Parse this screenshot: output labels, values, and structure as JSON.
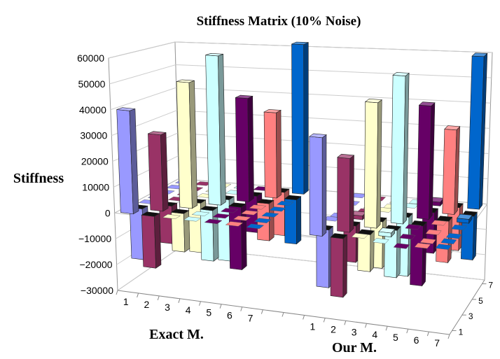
{
  "chart_data": {
    "type": "bar3d",
    "title": "Stiffness Matrix (10% Noise)",
    "zlabel": "Stiffness",
    "groups": [
      {
        "name": "Exact M.",
        "matrix": [
          [
            40000,
            -20000,
            0,
            0,
            0,
            0,
            0
          ],
          [
            -20000,
            30000,
            -15000,
            0,
            0,
            0,
            0
          ],
          [
            0,
            -15000,
            50000,
            -20000,
            0,
            0,
            0
          ],
          [
            0,
            0,
            -20000,
            60000,
            -25000,
            0,
            0
          ],
          [
            0,
            0,
            0,
            -25000,
            42000,
            -15000,
            0
          ],
          [
            0,
            0,
            0,
            0,
            -15000,
            35000,
            -18000
          ],
          [
            0,
            0,
            0,
            0,
            0,
            -18000,
            62000
          ]
        ]
      },
      {
        "name": "Our M.",
        "matrix": [
          [
            37000,
            -22000,
            1000,
            0,
            -1000,
            0,
            500
          ],
          [
            -22000,
            28000,
            -14000,
            1500,
            0,
            -800,
            0
          ],
          [
            1000,
            -14000,
            48000,
            -18000,
            1200,
            0,
            -600
          ],
          [
            0,
            1500,
            -18000,
            57000,
            -23000,
            1000,
            0
          ],
          [
            -1000,
            0,
            1200,
            -23000,
            44000,
            -16000,
            1500
          ],
          [
            0,
            -800,
            0,
            1000,
            -16000,
            33000,
            -17000
          ],
          [
            500,
            0,
            -600,
            0,
            1500,
            -17000,
            60000
          ]
        ]
      }
    ],
    "x_ticks": [
      "1",
      "2",
      "3",
      "4",
      "5",
      "6",
      "7"
    ],
    "depth_ticks": [
      "1",
      "3",
      "5",
      "7"
    ],
    "zlim": [
      -30000,
      60000
    ],
    "z_ticks": [
      "-30000",
      "-20000",
      "-10000",
      "0",
      "10000",
      "20000",
      "30000",
      "40000",
      "50000",
      "60000"
    ],
    "series_colors": [
      "#9999ff",
      "#993366",
      "#ffffcc",
      "#ccffff",
      "#660066",
      "#ff8080",
      "#0066cc"
    ],
    "grid": true
  }
}
